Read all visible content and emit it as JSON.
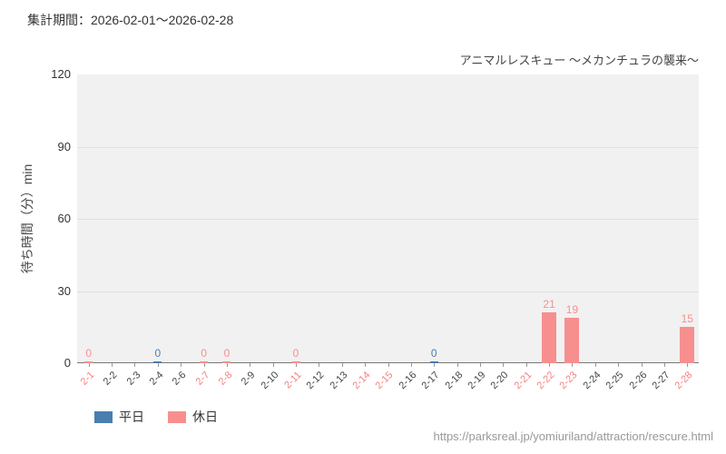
{
  "header": {
    "period_label": "集計期間：2026-02-01〜2026-02-28"
  },
  "footer": {
    "source_url": "https://parksreal.jp/yomiuriland/attraction/rescure.html"
  },
  "chart_data": {
    "type": "bar",
    "title": "アニマルレスキュー 〜メカンチュラの襲来〜",
    "xlabel": "",
    "ylabel": "待ち時間（分）min",
    "ylim": [
      0,
      120
    ],
    "yticks": [
      0,
      30,
      60,
      90,
      120
    ],
    "grid": "horizontal",
    "legend_position": "bottom-left",
    "plot_bg": "#f1f1f1",
    "gridline_color": "#e0e0e0",
    "axis_line_color": "#777777",
    "tick_mark_color": "#999999",
    "categories": [
      "2-1",
      "2-2",
      "2-3",
      "2-4",
      "2-6",
      "2-7",
      "2-8",
      "2-9",
      "2-10",
      "2-11",
      "2-12",
      "2-13",
      "2-14",
      "2-15",
      "2-16",
      "2-17",
      "2-18",
      "2-19",
      "2-20",
      "2-21",
      "2-22",
      "2-23",
      "2-24",
      "2-25",
      "2-26",
      "2-27",
      "2-28"
    ],
    "weekend_indices": [
      0,
      5,
      6,
      9,
      12,
      13,
      19,
      20,
      21,
      26
    ],
    "tick_label_colors": {
      "weekday": "#444444",
      "holiday": "#f57f7f"
    },
    "series": [
      {
        "key": "weekday",
        "name": "平日",
        "color": "#4a7eb0",
        "values": [
          null,
          null,
          null,
          0,
          null,
          null,
          null,
          null,
          null,
          null,
          null,
          null,
          null,
          null,
          null,
          0,
          null,
          null,
          null,
          null,
          null,
          null,
          null,
          null,
          null,
          null,
          null
        ]
      },
      {
        "key": "holiday",
        "name": "休日",
        "color": "#f78f8f",
        "values": [
          0,
          null,
          null,
          null,
          null,
          0,
          0,
          null,
          null,
          0,
          null,
          null,
          null,
          null,
          null,
          null,
          null,
          null,
          null,
          null,
          21,
          19,
          null,
          null,
          null,
          null,
          15
        ]
      }
    ]
  }
}
